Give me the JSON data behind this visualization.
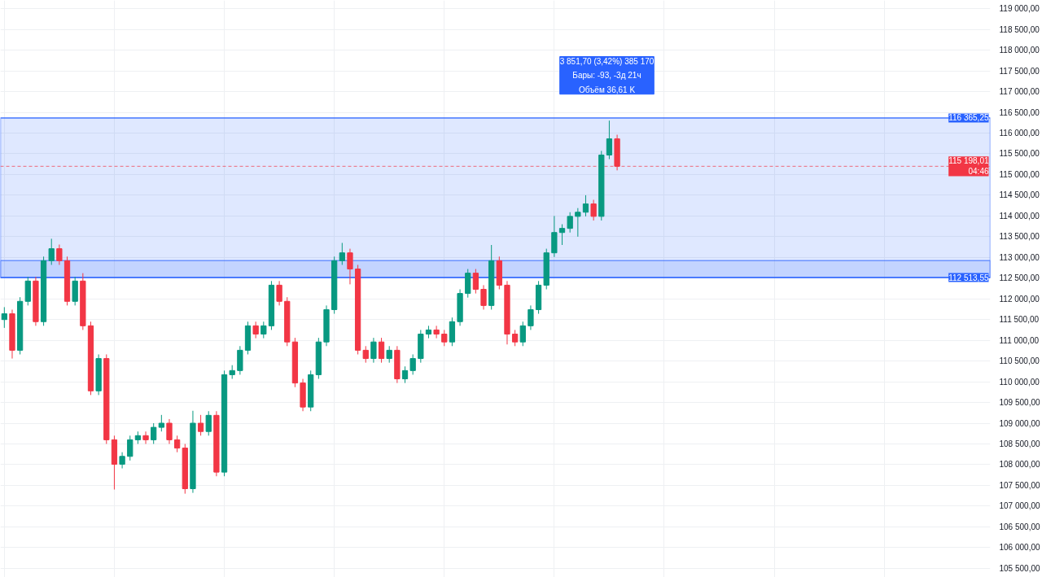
{
  "chart_data": {
    "type": "candlestick",
    "categories": [
      null,
      null,
      null,
      null,
      null,
      null,
      null,
      null,
      null,
      null,
      null,
      null,
      null,
      null,
      null,
      null,
      null,
      null,
      null,
      null,
      null,
      null,
      null,
      null,
      null,
      null,
      null,
      null,
      null,
      null,
      null,
      null,
      null,
      null,
      null,
      null,
      null,
      null,
      null,
      null,
      null,
      null,
      null,
      null,
      null,
      null,
      null,
      null,
      null,
      null,
      null,
      null,
      null,
      null,
      null,
      null,
      null,
      null,
      null,
      null,
      null,
      null,
      null,
      null,
      null,
      null,
      null,
      null,
      null,
      null,
      null,
      null,
      null,
      null,
      null,
      null,
      null,
      null,
      null,
      null,
      null,
      null,
      null,
      null,
      null,
      null,
      null,
      null,
      null,
      null,
      null,
      null,
      null,
      null,
      null,
      null,
      null,
      null,
      null,
      null,
      null,
      null,
      null,
      null,
      null,
      null,
      null,
      null,
      null,
      null,
      null,
      null,
      null,
      null,
      null,
      null,
      null,
      null,
      null,
      null,
      null,
      null,
      null,
      null,
      null,
      null
    ],
    "ohlc": [
      [
        111500,
        111800,
        111300,
        111640
      ],
      [
        111640,
        111740,
        110560,
        110760
      ],
      [
        110760,
        112040,
        110660,
        111940
      ],
      [
        111940,
        112530,
        111840,
        112430
      ],
      [
        112430,
        112530,
        111350,
        111450
      ],
      [
        111450,
        113020,
        111350,
        112920
      ],
      [
        112920,
        113450,
        112820,
        113210
      ],
      [
        113210,
        113310,
        112820,
        112920
      ],
      [
        112920,
        113020,
        111840,
        111940
      ],
      [
        111940,
        112530,
        111840,
        112430
      ],
      [
        112430,
        112620,
        111250,
        111350
      ],
      [
        111350,
        111450,
        109680,
        109780
      ],
      [
        109780,
        110660,
        109680,
        110560
      ],
      [
        110560,
        110660,
        108500,
        108600
      ],
      [
        108600,
        108700,
        107400,
        108010
      ],
      [
        108010,
        108300,
        107910,
        108200
      ],
      [
        108200,
        108700,
        108100,
        108600
      ],
      [
        108600,
        108800,
        108500,
        108700
      ],
      [
        108700,
        108800,
        108500,
        108600
      ],
      [
        108600,
        109000,
        108500,
        108900
      ],
      [
        108900,
        109200,
        108800,
        109000
      ],
      [
        109000,
        109100,
        108500,
        108600
      ],
      [
        108600,
        108700,
        108300,
        108400
      ],
      [
        108400,
        108500,
        107300,
        107420
      ],
      [
        107420,
        109300,
        107320,
        109000
      ],
      [
        109000,
        109200,
        108700,
        108800
      ],
      [
        108800,
        109290,
        108700,
        109190
      ],
      [
        109190,
        109290,
        107720,
        107820
      ],
      [
        107820,
        110270,
        107720,
        110170
      ],
      [
        110170,
        110400,
        110070,
        110270
      ],
      [
        110270,
        110860,
        110170,
        110760
      ],
      [
        110760,
        111450,
        110660,
        111350
      ],
      [
        111350,
        111450,
        111050,
        111150
      ],
      [
        111150,
        111450,
        111050,
        111350
      ],
      [
        111350,
        112430,
        111250,
        112330
      ],
      [
        112330,
        112430,
        111840,
        111940
      ],
      [
        111940,
        112040,
        110860,
        110960
      ],
      [
        110960,
        111060,
        109870,
        109970
      ],
      [
        109970,
        110070,
        109290,
        109390
      ],
      [
        109390,
        110270,
        109290,
        110170
      ],
      [
        110170,
        111060,
        110070,
        110960
      ],
      [
        110960,
        111840,
        110860,
        111740
      ],
      [
        111740,
        113020,
        111640,
        112920
      ],
      [
        112920,
        113350,
        112820,
        113110
      ],
      [
        113110,
        113210,
        112350,
        112720
      ],
      [
        112720,
        112820,
        110660,
        110760
      ],
      [
        110760,
        110860,
        110460,
        110560
      ],
      [
        110560,
        111060,
        110460,
        110960
      ],
      [
        110960,
        111060,
        110460,
        110560
      ],
      [
        110560,
        110860,
        110460,
        110760
      ],
      [
        110760,
        110860,
        109970,
        110070
      ],
      [
        110070,
        110370,
        109970,
        110270
      ],
      [
        110270,
        110660,
        110170,
        110560
      ],
      [
        110560,
        111250,
        110460,
        111150
      ],
      [
        111150,
        111350,
        111050,
        111250
      ],
      [
        111250,
        111350,
        111050,
        111150
      ],
      [
        111150,
        111250,
        110860,
        110960
      ],
      [
        110960,
        111550,
        110860,
        111450
      ],
      [
        111450,
        112230,
        111350,
        112130
      ],
      [
        112130,
        112720,
        112030,
        112620
      ],
      [
        112620,
        112720,
        112130,
        112230
      ],
      [
        112230,
        112330,
        111740,
        111840
      ],
      [
        111840,
        113300,
        111740,
        112920
      ],
      [
        112920,
        113020,
        112230,
        112330
      ],
      [
        112330,
        112430,
        110900,
        111150
      ],
      [
        111150,
        111250,
        110860,
        110960
      ],
      [
        110960,
        111450,
        110860,
        111350
      ],
      [
        111350,
        111840,
        111250,
        111740
      ],
      [
        111740,
        112430,
        111640,
        112330
      ],
      [
        112330,
        113210,
        112230,
        113110
      ],
      [
        113110,
        114000,
        113010,
        113600
      ],
      [
        113600,
        113800,
        113300,
        113700
      ],
      [
        113700,
        114090,
        113600,
        113990
      ],
      [
        113990,
        114190,
        113500,
        114090
      ],
      [
        114090,
        114500,
        113990,
        114290
      ],
      [
        114290,
        114390,
        113890,
        113990
      ],
      [
        113990,
        115570,
        113890,
        115470
      ],
      [
        115470,
        116300,
        115370,
        115860
      ],
      [
        115860,
        115960,
        115100,
        115198.01
      ],
      null,
      null,
      null,
      null,
      null,
      null,
      null,
      null,
      null,
      null,
      null,
      null,
      null,
      null,
      null,
      null,
      null,
      null,
      null,
      null,
      null,
      null,
      null,
      null,
      null,
      null,
      null,
      null,
      null,
      null,
      null,
      null,
      null,
      null,
      null,
      null,
      null,
      null,
      null,
      null,
      null,
      null,
      null,
      null,
      null,
      null,
      null
    ],
    "ylim": [
      105280,
      119200
    ],
    "yticks": [
      {
        "value": 105500,
        "label": "105 500,00"
      },
      {
        "value": 106000,
        "label": "106 000,00"
      },
      {
        "value": 106500,
        "label": "106 500,00"
      },
      {
        "value": 107000,
        "label": "107 000,00"
      },
      {
        "value": 107500,
        "label": "107 500,00"
      },
      {
        "value": 108000,
        "label": "108 000,00"
      },
      {
        "value": 108500,
        "label": "108 500,00"
      },
      {
        "value": 109000,
        "label": "109 000,00"
      },
      {
        "value": 109500,
        "label": "109 500,00"
      },
      {
        "value": 110000,
        "label": "110 000,00"
      },
      {
        "value": 110500,
        "label": "110 500,00"
      },
      {
        "value": 111000,
        "label": "111 000,00"
      },
      {
        "value": 111500,
        "label": "111 500,00"
      },
      {
        "value": 112000,
        "label": "112 000,00"
      },
      {
        "value": 112500,
        "label": "112 500,00"
      },
      {
        "value": 113000,
        "label": "113 000,00"
      },
      {
        "value": 113500,
        "label": "113 500,00"
      },
      {
        "value": 114000,
        "label": "114 000,00"
      },
      {
        "value": 114500,
        "label": "114 500,00"
      },
      {
        "value": 115000,
        "label": "115 000,00"
      },
      {
        "value": 115500,
        "label": "115 500,00"
      },
      {
        "value": 116000,
        "label": "116 000,00"
      },
      {
        "value": 116500,
        "label": "116 500,00"
      },
      {
        "value": 117000,
        "label": "117 000,00"
      },
      {
        "value": 117500,
        "label": "117 500,00"
      },
      {
        "value": 118000,
        "label": "118 000,00"
      },
      {
        "value": 118500,
        "label": "118 500,00"
      },
      {
        "value": 119000,
        "label": "119 000,00"
      }
    ],
    "grid": true,
    "tick_labels": "y",
    "bands": [
      {
        "axis": "y",
        "from": 112513.55,
        "to": 116365.25,
        "color": "#2962ff"
      },
      {
        "axis": "y",
        "from": 112513.55,
        "to": 112920,
        "color": "#2962ff"
      }
    ],
    "ref_lines": [
      {
        "axis": "y",
        "value": 116365.25,
        "label": "116 365,25",
        "color": "#2962ff"
      },
      {
        "axis": "y",
        "value": 112513.55,
        "label": "112 513,55",
        "color": "#2962ff"
      },
      {
        "axis": "y",
        "value": 115198.01,
        "label": "115 198,01\n04:46",
        "color": "#f23645",
        "line_style": "dashed"
      }
    ],
    "annotations": [
      "3 851,70 (3,42%) 385 170",
      "Бары: -93, -3д 21ч",
      "Объём 36,61 K"
    ]
  }
}
